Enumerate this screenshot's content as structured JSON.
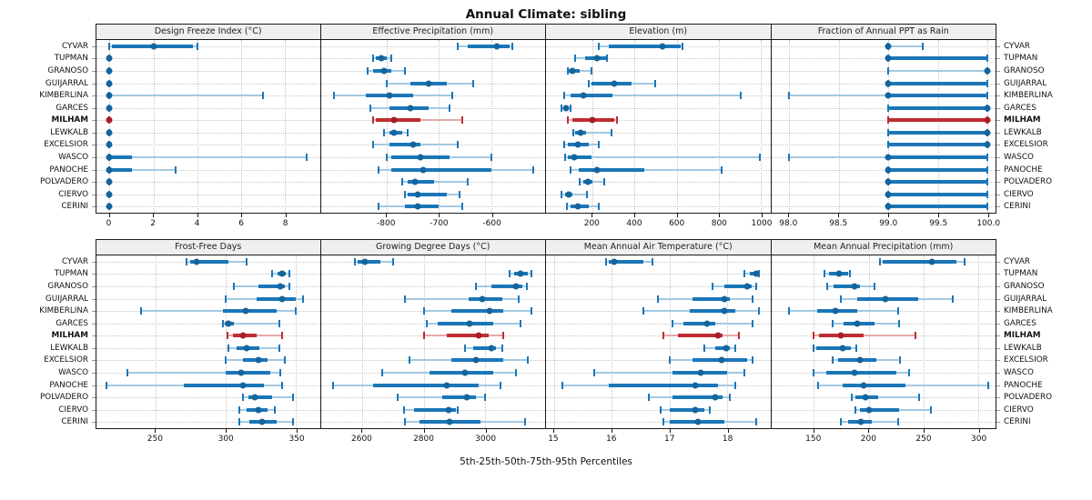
{
  "title": "Annual Climate: sibling",
  "caption": "5th-25th-50th-75th-95th Percentiles",
  "colors": {
    "blue_point": "#15649c",
    "blue_bar": "#1b76b8",
    "blue_light": "#a3c9e2",
    "red_point": "#a81e22",
    "red_bar": "#bf2d32",
    "red_light": "#e5a8a8",
    "strip_bg": "#efefef",
    "gridline": "#c6c6c6",
    "border": "#1a1a1a"
  },
  "chart_data": {
    "type": "scatter",
    "variant": "trellis-percentile-interval-dotplot",
    "percentile_labels": [
      "5th",
      "25th",
      "50th",
      "75th",
      "95th"
    ],
    "highlight_station": "MILHAM",
    "stations": [
      "CYVAR",
      "TUPMAN",
      "GRANOSO",
      "GUIJARRAL",
      "KIMBERLINA",
      "GARCES",
      "MILHAM",
      "LEWKALB",
      "EXCELSIOR",
      "WASCO",
      "PANOCHE",
      "POLVADERO",
      "CIERVO",
      "CERINI"
    ],
    "layout": {
      "rows": 2,
      "cols": 4,
      "grid": "dotted",
      "legend": "none"
    },
    "panels": [
      {
        "title": "Design Freeze Index (°C)",
        "ticks": [
          0,
          2,
          4,
          6,
          8
        ],
        "tick_labels": [
          "0",
          "2",
          "4",
          "6",
          "8"
        ],
        "range": [
          -0.6,
          9.6
        ],
        "values": [
          [
            0,
            0.1,
            2,
            3.8,
            4
          ],
          [
            0,
            0,
            0,
            0,
            0
          ],
          [
            0,
            0,
            0,
            0,
            0
          ],
          [
            0,
            0,
            0,
            0,
            0
          ],
          [
            0,
            0,
            0,
            0,
            7
          ],
          [
            0,
            0,
            0,
            0,
            0
          ],
          [
            0,
            0,
            0,
            0,
            0
          ],
          [
            0,
            0,
            0,
            0,
            0
          ],
          [
            0,
            0,
            0,
            0,
            0
          ],
          [
            0,
            0,
            0,
            1,
            9
          ],
          [
            0,
            0,
            0,
            1,
            3
          ],
          [
            0,
            0,
            0,
            0,
            0
          ],
          [
            0,
            0,
            0,
            0,
            0
          ],
          [
            0,
            0,
            0,
            0,
            0
          ]
        ]
      },
      {
        "title": "Effective Precipitation (mm)",
        "ticks": [
          -800,
          -700,
          -600
        ],
        "tick_labels": [
          "-800",
          "-700",
          "-600"
        ],
        "range": [
          -925,
          -498
        ],
        "values": [
          [
            -665,
            -645,
            -590,
            -565,
            -560
          ],
          [
            -825,
            -820,
            -810,
            -800,
            -790
          ],
          [
            -835,
            -825,
            -805,
            -790,
            -765
          ],
          [
            -800,
            -755,
            -720,
            -685,
            -635
          ],
          [
            -900,
            -840,
            -795,
            -750,
            -675
          ],
          [
            -830,
            -795,
            -755,
            -720,
            -680
          ],
          [
            -825,
            -820,
            -785,
            -735,
            -655
          ],
          [
            -805,
            -795,
            -785,
            -770,
            -760
          ],
          [
            -825,
            -795,
            -750,
            -735,
            -665
          ],
          [
            -800,
            -790,
            -735,
            -680,
            -600
          ],
          [
            -815,
            -790,
            -730,
            -600,
            -520
          ],
          [
            -770,
            -760,
            -745,
            -710,
            -645
          ],
          [
            -765,
            -760,
            -740,
            -685,
            -660
          ],
          [
            -815,
            -765,
            -740,
            -700,
            -655
          ]
        ]
      },
      {
        "title": "Elevation (m)",
        "ticks": [
          200,
          400,
          600,
          800,
          1000
        ],
        "tick_labels": [
          "200",
          "400",
          "600",
          "800",
          "1000"
        ],
        "range": [
          -20,
          1045
        ],
        "values": [
          [
            230,
            280,
            535,
            620,
            630
          ],
          [
            120,
            165,
            220,
            265,
            270
          ],
          [
            85,
            90,
            105,
            140,
            195
          ],
          [
            185,
            195,
            305,
            385,
            500
          ],
          [
            65,
            95,
            155,
            295,
            905
          ],
          [
            55,
            65,
            75,
            85,
            95
          ],
          [
            85,
            105,
            200,
            305,
            315
          ],
          [
            110,
            120,
            145,
            170,
            290
          ],
          [
            65,
            85,
            130,
            185,
            230
          ],
          [
            70,
            85,
            115,
            195,
            995
          ],
          [
            95,
            135,
            220,
            445,
            815
          ],
          [
            140,
            155,
            180,
            200,
            255
          ],
          [
            55,
            70,
            90,
            105,
            175
          ],
          [
            80,
            95,
            130,
            185,
            230
          ]
        ]
      },
      {
        "title": "Fraction of Annual PPT as Rain",
        "ticks": [
          98.0,
          98.5,
          99.0,
          99.5,
          100.0
        ],
        "tick_labels": [
          "98.0",
          "98.5",
          "99.0",
          "99.5",
          "100.0"
        ],
        "range": [
          97.82,
          100.08
        ],
        "values": [
          [
            99,
            99,
            99,
            99,
            99.35
          ],
          [
            99,
            99,
            99,
            100,
            100
          ],
          [
            99,
            100,
            100,
            100,
            100
          ],
          [
            99,
            99,
            99,
            100,
            100
          ],
          [
            98,
            99,
            99,
            100,
            100
          ],
          [
            99,
            99,
            100,
            100,
            100
          ],
          [
            99,
            99,
            100,
            100,
            100
          ],
          [
            99,
            99,
            100,
            100,
            100
          ],
          [
            99,
            99,
            100,
            100,
            100
          ],
          [
            98,
            99,
            99,
            100,
            100
          ],
          [
            99,
            99,
            99,
            100,
            100
          ],
          [
            99,
            99,
            99,
            100,
            100
          ],
          [
            99,
            99,
            99,
            100,
            100
          ],
          [
            99,
            99,
            99,
            100,
            100
          ]
        ]
      },
      {
        "title": "Frost-Free Days",
        "ticks": [
          250,
          300,
          350
        ],
        "tick_labels": [
          "250",
          "300",
          "350"
        ],
        "range": [
          208,
          367
        ],
        "values": [
          [
            272,
            275,
            279,
            302,
            315
          ],
          [
            333,
            337,
            340,
            343,
            345
          ],
          [
            306,
            323,
            339,
            342,
            345
          ],
          [
            300,
            322,
            340,
            350,
            355
          ],
          [
            240,
            298,
            314,
            336,
            350
          ],
          [
            298,
            299,
            302,
            306,
            338
          ],
          [
            301,
            305,
            312,
            322,
            340
          ],
          [
            302,
            308,
            315,
            324,
            338
          ],
          [
            300,
            312,
            323,
            330,
            342
          ],
          [
            230,
            300,
            311,
            332,
            339
          ],
          [
            215,
            270,
            312,
            327,
            340
          ],
          [
            312,
            316,
            321,
            333,
            348
          ],
          [
            310,
            315,
            323,
            330,
            335
          ],
          [
            310,
            317,
            326,
            336,
            348
          ]
        ]
      },
      {
        "title": "Growing Degree Days (°C)",
        "ticks": [
          2600,
          2800,
          3000
        ],
        "tick_labels": [
          "2600",
          "2800",
          "3000"
        ],
        "range": [
          2465,
          3195
        ],
        "values": [
          [
            2575,
            2585,
            2610,
            2660,
            2700
          ],
          [
            3080,
            3095,
            3115,
            3140,
            3150
          ],
          [
            2970,
            3020,
            3100,
            3120,
            3135
          ],
          [
            2740,
            2945,
            2990,
            3055,
            3110
          ],
          [
            2800,
            2890,
            3015,
            3060,
            3150
          ],
          [
            2810,
            2845,
            2950,
            3025,
            3115
          ],
          [
            2800,
            2875,
            2980,
            3010,
            3060
          ],
          [
            2935,
            2960,
            3020,
            3035,
            3055
          ],
          [
            2755,
            2890,
            2970,
            3060,
            3140
          ],
          [
            2665,
            2820,
            2935,
            3025,
            3100
          ],
          [
            2505,
            2635,
            2875,
            2980,
            3050
          ],
          [
            2715,
            2860,
            2940,
            2970,
            3000
          ],
          [
            2735,
            2770,
            2880,
            2905,
            2910
          ],
          [
            2740,
            2785,
            2885,
            2985,
            3130
          ]
        ]
      },
      {
        "title": "Mean Annual Air Temperature (°C)",
        "ticks": [
          15,
          16,
          17,
          18
        ],
        "tick_labels": [
          "15",
          "16",
          "17",
          "18"
        ],
        "range": [
          14.86,
          18.75
        ],
        "values": [
          [
            15.9,
            15.95,
            16.05,
            16.55,
            16.7
          ],
          [
            18.3,
            18.4,
            18.5,
            18.52,
            18.55
          ],
          [
            17.75,
            17.95,
            18.35,
            18.42,
            18.5
          ],
          [
            16.8,
            17.4,
            17.95,
            18.05,
            18.45
          ],
          [
            16.55,
            17.35,
            17.95,
            18.15,
            18.55
          ],
          [
            17.05,
            17.25,
            17.65,
            17.8,
            18.45
          ],
          [
            16.9,
            17.15,
            17.85,
            17.92,
            18.2
          ],
          [
            17.6,
            17.8,
            17.98,
            18.05,
            18.15
          ],
          [
            17.0,
            17.4,
            17.9,
            18.35,
            18.45
          ],
          [
            15.7,
            17.05,
            17.55,
            18.0,
            18.3
          ],
          [
            15.15,
            15.95,
            17.45,
            17.85,
            18.15
          ],
          [
            16.65,
            17.05,
            17.8,
            17.92,
            18.05
          ],
          [
            16.85,
            17.0,
            17.45,
            17.6,
            17.7
          ],
          [
            16.9,
            17.0,
            17.5,
            17.95,
            18.5
          ]
        ]
      },
      {
        "title": "Mean Annual Precipitation (mm)",
        "ticks": [
          150,
          200,
          250,
          300
        ],
        "tick_labels": [
          "150",
          "200",
          "250",
          "300"
        ],
        "range": [
          111,
          316
        ],
        "values": [
          [
            210,
            213,
            258,
            280,
            288
          ],
          [
            160,
            164,
            173,
            181,
            183
          ],
          [
            162,
            168,
            187,
            192,
            205
          ],
          [
            175,
            190,
            215,
            245,
            277
          ],
          [
            127,
            153,
            170,
            190,
            227
          ],
          [
            167,
            177,
            190,
            205,
            228
          ],
          [
            150,
            155,
            175,
            195,
            243
          ],
          [
            150,
            152,
            176,
            184,
            189
          ],
          [
            167,
            172,
            192,
            207,
            229
          ],
          [
            150,
            161,
            187,
            225,
            237
          ],
          [
            154,
            176,
            195,
            234,
            309
          ],
          [
            185,
            188,
            197,
            209,
            246
          ],
          [
            188,
            192,
            200,
            228,
            257
          ],
          [
            175,
            181,
            193,
            203,
            227
          ]
        ]
      }
    ]
  }
}
